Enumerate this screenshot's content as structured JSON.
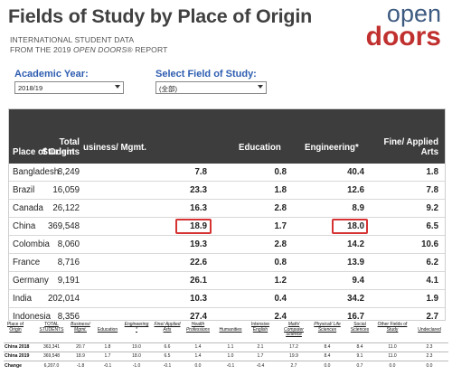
{
  "header": {
    "title": "Fields of Study by Place of Origin",
    "subtitle_line1": "INTERNATIONAL STUDENT DATA",
    "subtitle_line2_prefix": "FROM THE 2019 ",
    "subtitle_line2_italic": "OPEN DOORS",
    "subtitle_line2_suffix": "® REPORT",
    "logo_top": "open",
    "logo_bottom": "doors"
  },
  "filters": {
    "year_label": "Academic Year:",
    "year_value": "2018/19",
    "field_label": "Select Field of Study:",
    "field_value": "(全部)"
  },
  "table": {
    "headers": {
      "place": "Place of Origin",
      "total_line1": "Total",
      "total_line2": "Students",
      "business": "usiness/ Mgmt.",
      "education": "Education",
      "engineering": "Engineering*",
      "fine_line1": "Fine/ Applied",
      "fine_line2": "Arts"
    },
    "rows": [
      {
        "place": "Bangladesh",
        "total": "8,249",
        "business": "7.8",
        "education": "0.8",
        "engineering": "40.4",
        "fine": "1.8"
      },
      {
        "place": "Brazil",
        "total": "16,059",
        "business": "23.3",
        "education": "1.8",
        "engineering": "12.6",
        "fine": "7.8"
      },
      {
        "place": "Canada",
        "total": "26,122",
        "business": "16.3",
        "education": "2.8",
        "engineering": "8.9",
        "fine": "9.2"
      },
      {
        "place": "China",
        "total": "369,548",
        "business": "18.9",
        "education": "1.7",
        "engineering": "18.0",
        "fine": "6.5"
      },
      {
        "place": "Colombia",
        "total": "8,060",
        "business": "19.3",
        "education": "2.8",
        "engineering": "14.2",
        "fine": "10.6"
      },
      {
        "place": "France",
        "total": "8,716",
        "business": "22.6",
        "education": "0.8",
        "engineering": "13.9",
        "fine": "6.2"
      },
      {
        "place": "Germany",
        "total": "9,191",
        "business": "26.1",
        "education": "1.2",
        "engineering": "9.4",
        "fine": "4.1"
      },
      {
        "place": "India",
        "total": "202,014",
        "business": "10.3",
        "education": "0.4",
        "engineering": "34.2",
        "fine": "1.9"
      },
      {
        "place": "Indonesia",
        "total": "8,356",
        "business": "27.4",
        "education": "2.4",
        "engineering": "16.7",
        "fine": "2.7"
      }
    ]
  },
  "comparison": {
    "headers": [
      "Place of Origin",
      "TOTAL STUDENTS",
      "Business/ Mgmt.",
      "Education",
      "Engineering *",
      "Fine/ Applied Arts",
      "Health Professions",
      "Humanities",
      "Intensive English",
      "Math/ Computer Science",
      "Physical/ Life Sciences",
      "Social Sciences",
      "Other Fields of Study",
      "Undeclared"
    ],
    "rows": [
      {
        "label": "China 2018",
        "values": [
          "363,341",
          "20.7",
          "1.8",
          "19.0",
          "6.6",
          "1.4",
          "1.1",
          "2.1",
          "17.2",
          "8.4",
          "8.4",
          "11.0",
          "2.3"
        ]
      },
      {
        "label": "China 2019",
        "values": [
          "369,548",
          "18.9",
          "1.7",
          "18.0",
          "6.5",
          "1.4",
          "1.0",
          "1.7",
          "19.9",
          "8.4",
          "9.1",
          "11.0",
          "2.3"
        ]
      },
      {
        "label": "Change",
        "values": [
          "6,207.0",
          "-1.8",
          "-0.1",
          "-1.0",
          "-0.1",
          "0.0",
          "-0.1",
          "-0.4",
          "2.7",
          "0.0",
          "0.7",
          "0.0",
          "0.0"
        ]
      }
    ]
  }
}
